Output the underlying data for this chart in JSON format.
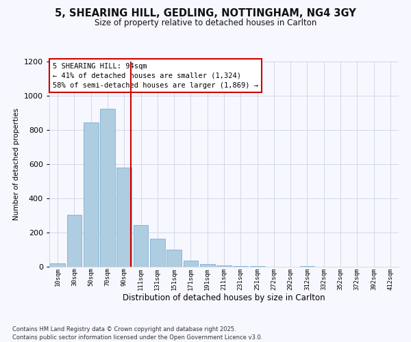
{
  "title": "5, SHEARING HILL, GEDLING, NOTTINGHAM, NG4 3GY",
  "subtitle": "Size of property relative to detached houses in Carlton",
  "xlabel": "Distribution of detached houses by size in Carlton",
  "ylabel": "Number of detached properties",
  "bar_labels": [
    "10sqm",
    "30sqm",
    "50sqm",
    "70sqm",
    "90sqm",
    "111sqm",
    "131sqm",
    "151sqm",
    "171sqm",
    "191sqm",
    "211sqm",
    "231sqm",
    "251sqm",
    "272sqm",
    "292sqm",
    "312sqm",
    "332sqm",
    "352sqm",
    "372sqm",
    "392sqm",
    "412sqm"
  ],
  "bar_values": [
    20,
    305,
    845,
    925,
    580,
    245,
    163,
    100,
    35,
    15,
    8,
    3,
    3,
    2,
    0,
    5,
    0,
    0,
    0,
    0,
    0
  ],
  "bar_color": "#aecde0",
  "bar_edge_color": "#7bafd4",
  "vline_color": "#cc0000",
  "annotation_text_line1": "5 SHEARING HILL: 94sqm",
  "annotation_text_line2": "← 41% of detached houses are smaller (1,324)",
  "annotation_text_line3": "58% of semi-detached houses are larger (1,869) →",
  "annotation_box_color": "#cc0000",
  "ylim": [
    0,
    1200
  ],
  "yticks": [
    0,
    200,
    400,
    600,
    800,
    1000,
    1200
  ],
  "footer_line1": "Contains HM Land Registry data © Crown copyright and database right 2025.",
  "footer_line2": "Contains public sector information licensed under the Open Government Licence v3.0.",
  "bg_color": "#f7f7ff",
  "grid_color": "#d0d8e8",
  "vline_xindex": 4.42
}
